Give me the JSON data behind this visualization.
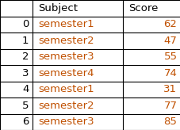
{
  "index": [
    0,
    1,
    2,
    3,
    4,
    5,
    6
  ],
  "subject": [
    "semester1",
    "semester2",
    "semester3",
    "semester4",
    "semester1",
    "semester2",
    "semester3"
  ],
  "score": [
    62,
    47,
    55,
    74,
    31,
    77,
    85
  ],
  "col_headers": [
    "Subject",
    "Score"
  ],
  "index_color": "#000000",
  "subject_color": "#c05000",
  "score_color": "#c05000",
  "header_color": "#000000",
  "bg_color": "#ffffff",
  "line_color": "#000000",
  "font_size": 9.5
}
